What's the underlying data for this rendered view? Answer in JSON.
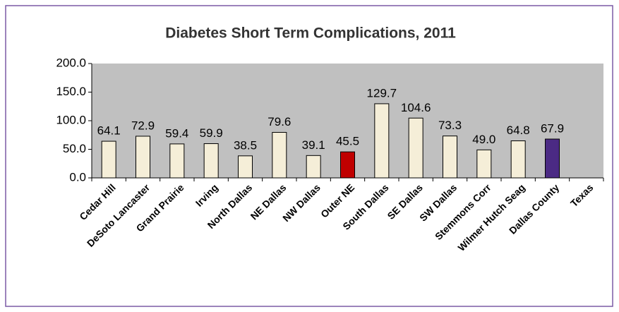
{
  "chart_data": {
    "type": "bar",
    "title": "Diabetes Short Term Complications, 2011",
    "categories": [
      "Cedar Hill",
      "DeSoto Lancaster",
      "Grand Prairie",
      "Irving",
      "North Dallas",
      "NE Dallas",
      "NW Dallas",
      "Outer NE",
      "South Dallas",
      "SE Dallas",
      "SW Dallas",
      "Stemmons Corr",
      "Wilmer Hutch Seag",
      "Dallas County",
      "Texas"
    ],
    "values": [
      64.1,
      72.9,
      59.4,
      59.9,
      38.5,
      79.6,
      39.1,
      45.5,
      129.7,
      104.6,
      73.3,
      49.0,
      64.8,
      67.9,
      null
    ],
    "value_labels": [
      "64.1",
      "72.9",
      "59.4",
      "59.9",
      "38.5",
      "79.6",
      "39.1",
      "45.5",
      "129.7",
      "104.6",
      "73.3",
      "49.0",
      "64.8",
      "67.9",
      null
    ],
    "colors": [
      "#f5eed8",
      "#f5eed8",
      "#f5eed8",
      "#f5eed8",
      "#f5eed8",
      "#f5eed8",
      "#f5eed8",
      "#c00000",
      "#f5eed8",
      "#f5eed8",
      "#f5eed8",
      "#f5eed8",
      "#f5eed8",
      "#4b2a84",
      "#f5eed8"
    ],
    "ylim": [
      0,
      200
    ],
    "yticks": [
      {
        "value": 0,
        "label": "0.0"
      },
      {
        "value": 50,
        "label": "50.0"
      },
      {
        "value": 100,
        "label": "100.0"
      },
      {
        "value": 150,
        "label": "150.0"
      },
      {
        "value": 200,
        "label": "200.0"
      }
    ],
    "grid": false
  }
}
